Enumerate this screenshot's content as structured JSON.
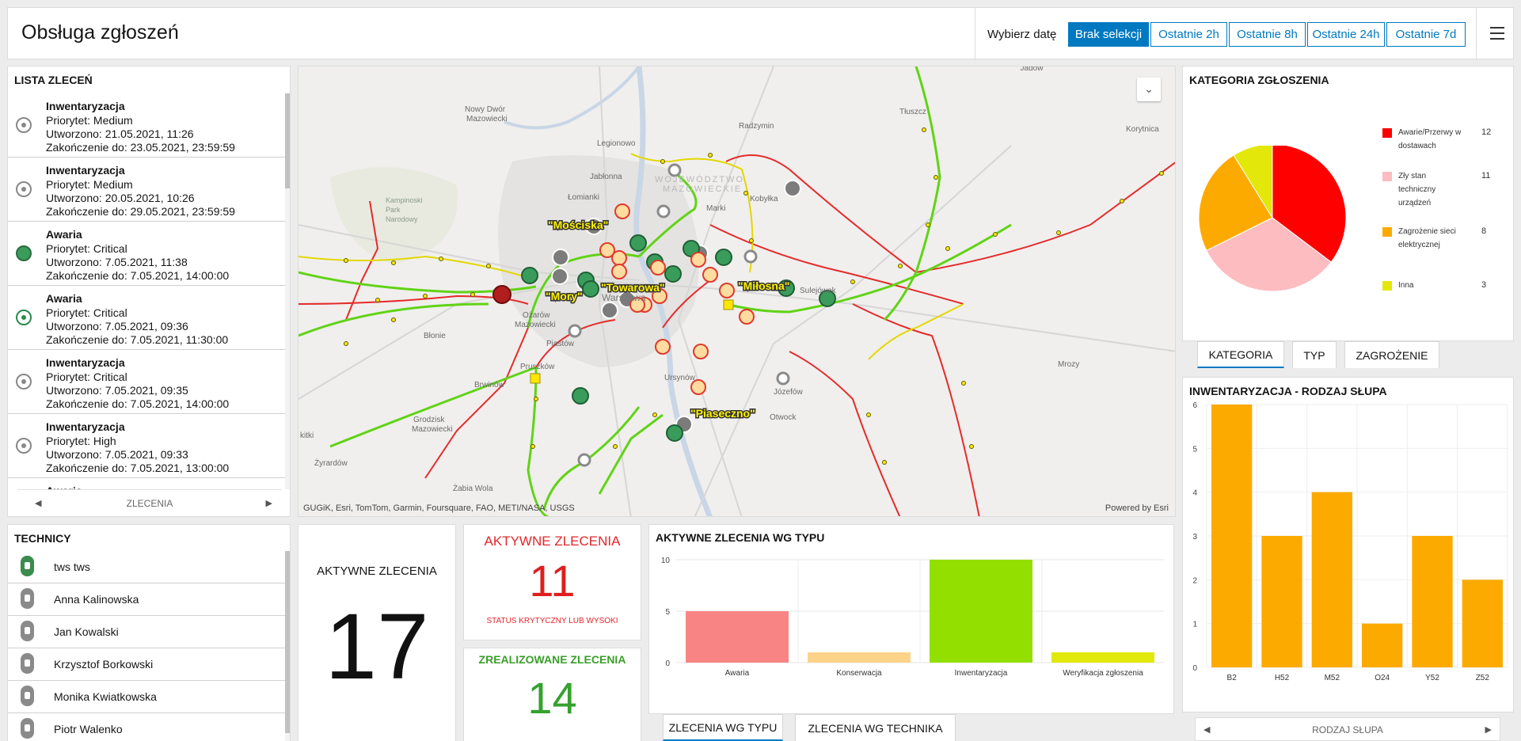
{
  "header": {
    "title": "Obsługa zgłoszeń",
    "date_label": "Wybierz datę",
    "date_buttons": [
      "Brak selekcji",
      "Ostatnie 2h",
      "Ostatnie 8h",
      "Ostatnie 24h",
      "Ostatnie 7d"
    ],
    "active_date_button": "Brak selekcji"
  },
  "orders": {
    "title": "LISTA ZLECEŃ",
    "footer_label": "ZLECENIA",
    "items": [
      {
        "name": "Inwentaryzacja",
        "priority": "Priorytet: Medium",
        "created": "Utworzono: 21.05.2021, 11:26",
        "due": "Zakończenie do: 23.05.2021, 23:59:59",
        "status": "grey"
      },
      {
        "name": "Inwentaryzacja",
        "priority": "Priorytet: Medium",
        "created": "Utworzono: 20.05.2021, 10:26",
        "due": "Zakończenie do: 29.05.2021, 23:59:59",
        "status": "grey"
      },
      {
        "name": "Awaria",
        "priority": "Priorytet: Critical",
        "created": "Utworzono: 7.05.2021, 11:38",
        "due": "Zakończenie do: 7.05.2021, 14:00:00",
        "status": "green-full"
      },
      {
        "name": "Awaria",
        "priority": "Priorytet: Critical",
        "created": "Utworzono: 7.05.2021, 09:36",
        "due": "Zakończenie do: 7.05.2021, 11:30:00",
        "status": "green"
      },
      {
        "name": "Inwentaryzacja",
        "priority": "Priorytet: Critical",
        "created": "Utworzono: 7.05.2021, 09:35",
        "due": "Zakończenie do: 7.05.2021, 14:00:00",
        "status": "grey"
      },
      {
        "name": "Inwentaryzacja",
        "priority": "Priorytet: High",
        "created": "Utworzono: 7.05.2021, 09:33",
        "due": "Zakończenie do: 7.05.2021, 13:00:00",
        "status": "grey"
      },
      {
        "name": "Awaria",
        "priority": "",
        "created": "",
        "due": "",
        "status": "grey"
      }
    ]
  },
  "map": {
    "credit": "GUGiK, Esri, TomTom, Garmin, Foursquare, FAO, METI/NASA, USGS",
    "powered": "Powered by Esri",
    "labels": [
      "\"Mościska\"",
      "\"Mory\"",
      "\"Towarowa\"",
      "\"Miłosna\"",
      "\"Piaseczno\""
    ],
    "places": [
      "Jadów",
      "Nowy Dwór Mazowiecki",
      "Legionowo",
      "Radzymin",
      "Tłuszcz",
      "Jabłonna",
      "WOJEWÓDZTWO MAZOWIECKIE",
      "Kobyłka",
      "Marki",
      "Łomianki",
      "Kampinoski Park Narodowy",
      "Ożarów Mazowiecki",
      "Warszawa",
      "Sulejówek",
      "Błonie",
      "Piastów",
      "Pruszków",
      "Brwinów",
      "Ursynów",
      "Józefów",
      "Grodzisk Mazowiecki",
      "Otwock",
      "Żyrardów",
      "Żabia Wola",
      "Mrozy",
      "Korytnica"
    ]
  },
  "technicians": {
    "title": "TECHNICY",
    "items": [
      {
        "name": "tws tws",
        "active": true
      },
      {
        "name": "Anna Kalinowska",
        "active": false
      },
      {
        "name": "Jan Kowalski",
        "active": false
      },
      {
        "name": "Krzysztof Borkowski",
        "active": false
      },
      {
        "name": "Monika Kwiatkowska",
        "active": false
      },
      {
        "name": "Piotr Walenko",
        "active": false
      }
    ]
  },
  "kpi": {
    "active_label": "AKTYWNE ZLECENIA",
    "active_value": "17",
    "critical_label": "AKTYWNE ZLECENIA",
    "critical_value": "11",
    "critical_sub": "STATUS KRYTYCZNY LUB WYSOKI",
    "done_label": "ZREALIZOWANE ZLECENIA",
    "done_value": "14"
  },
  "type_chart": {
    "title": "AKTYWNE ZLECENIA WG TYPU",
    "tabs": [
      "ZLECENIA WG TYPU",
      "ZLECENIA WG TECHNIKA"
    ]
  },
  "category": {
    "title": "KATEGORIA ZGŁOSZENIA",
    "tabs": [
      "KATEGORIA",
      "TYP",
      "ZAGROŻENIE"
    ]
  },
  "pole": {
    "title": "INWENTARYZACJA - RODZAJ SŁUPA",
    "footer_label": "RODZAJ SŁUPA"
  },
  "chart_data": [
    {
      "type": "bar",
      "title": "AKTYWNE ZLECENIA WG TYPU",
      "categories": [
        "Awaria",
        "Konserwacja",
        "Inwentaryzacja",
        "Weryfikacja zgłoszenia"
      ],
      "values": [
        5,
        1,
        10,
        1
      ],
      "colors": [
        "#f98484",
        "#fdd38a",
        "#93e000",
        "#e1e80c"
      ],
      "ylim": [
        0,
        10
      ],
      "yticks": [
        0,
        5,
        10
      ]
    },
    {
      "type": "pie",
      "title": "KATEGORIA ZGŁOSZENIA",
      "labels": [
        "Awarie/Przerwy w dostawach",
        "Zły stan techniczny urządzeń",
        "Zagrożenie sieci elektrycznej",
        "Inna"
      ],
      "values": [
        12,
        11,
        8,
        3
      ],
      "colors": [
        "#fe0000",
        "#fcbcc0",
        "#fdaa00",
        "#e4e70a"
      ],
      "legend": "right"
    },
    {
      "type": "bar",
      "title": "INWENTARYZACJA - RODZAJ SŁUPA",
      "categories": [
        "B2",
        "H52",
        "M52",
        "O24",
        "Y52",
        "Z52"
      ],
      "values": [
        6,
        3,
        4,
        1,
        3,
        2
      ],
      "colors": [
        "#fdaa00"
      ],
      "ylim": [
        0,
        6
      ],
      "yticks": [
        0,
        1,
        2,
        3,
        4,
        5,
        6
      ]
    }
  ]
}
